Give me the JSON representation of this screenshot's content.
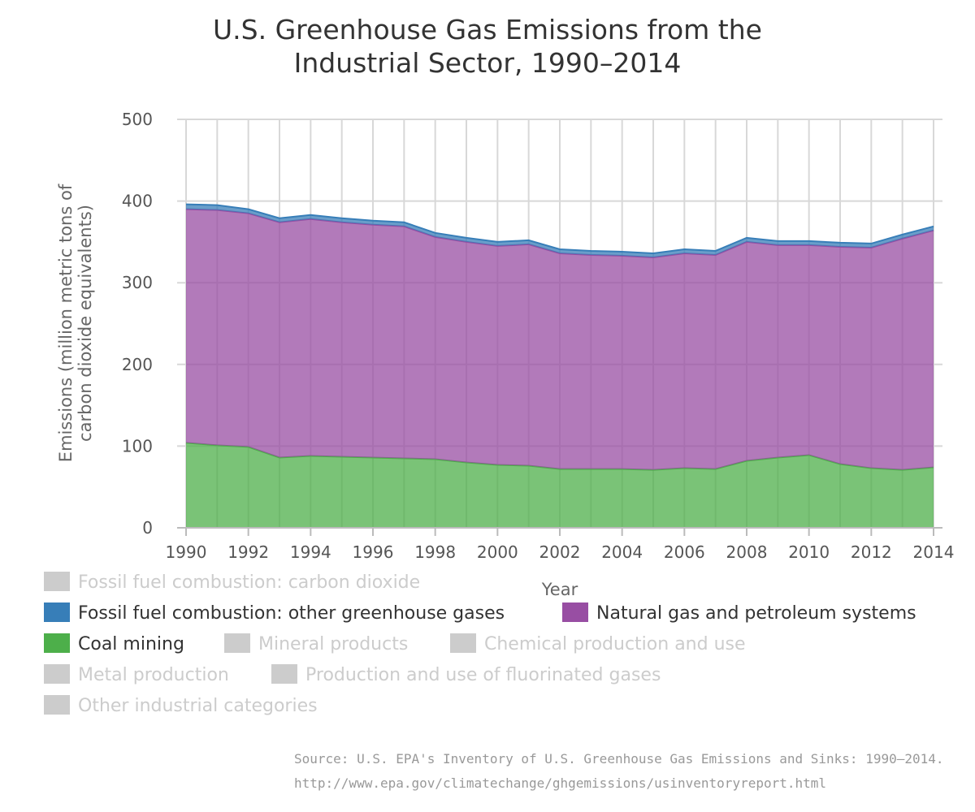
{
  "chart_data": {
    "type": "area",
    "stacked": true,
    "title": [
      "U.S. Greenhouse Gas Emissions from the",
      "Industrial Sector, 1990–2014"
    ],
    "xlabel": "Year",
    "ylabel": [
      "Emissions (million metric tons of",
      "carbon dioxide equivalents)"
    ],
    "ylim": [
      0,
      500
    ],
    "y_ticks": [
      0,
      100,
      200,
      300,
      400,
      500
    ],
    "x_ticks": [
      1990,
      1992,
      1994,
      1996,
      1998,
      2000,
      2002,
      2004,
      2006,
      2008,
      2010,
      2012,
      2014
    ],
    "grid": true,
    "legend_placement": "bottom",
    "x": [
      1990,
      1991,
      1992,
      1993,
      1994,
      1995,
      1996,
      1997,
      1998,
      1999,
      2000,
      2001,
      2002,
      2003,
      2004,
      2005,
      2006,
      2007,
      2008,
      2009,
      2010,
      2011,
      2012,
      2013,
      2014
    ],
    "series": [
      {
        "name": "Coal mining",
        "color": "#4daf4a",
        "visible": true,
        "values": [
          104,
          101,
          99,
          86,
          88,
          87,
          86,
          85,
          84,
          80,
          77,
          76,
          72,
          72,
          72,
          71,
          73,
          72,
          82,
          86,
          89,
          78,
          73,
          71,
          74
        ]
      },
      {
        "name": "Natural gas and petroleum systems",
        "color": "#984ea3",
        "visible": true,
        "values": [
          286,
          288,
          286,
          288,
          290,
          287,
          285,
          284,
          272,
          270,
          268,
          271,
          264,
          262,
          261,
          260,
          263,
          262,
          268,
          260,
          257,
          266,
          270,
          283,
          290
        ]
      },
      {
        "name": "Fossil fuel combustion: other greenhouse gases",
        "color": "#377eb8",
        "visible": true,
        "values": [
          6,
          6,
          5,
          5,
          5,
          5,
          5,
          5,
          5,
          5,
          5,
          5,
          5,
          5,
          5,
          5,
          5,
          5,
          5,
          5,
          5,
          5,
          5,
          5,
          5
        ]
      }
    ],
    "legend": [
      {
        "name": "Fossil fuel combustion: carbon dioxide",
        "color": "#cccccc",
        "visible": false
      },
      {
        "name": "Fossil fuel combustion: other greenhouse gases",
        "color": "#377eb8",
        "visible": true
      },
      {
        "name": "Natural gas and petroleum systems",
        "color": "#984ea3",
        "visible": true
      },
      {
        "name": "Coal mining",
        "color": "#4daf4a",
        "visible": true
      },
      {
        "name": "Mineral products",
        "color": "#cccccc",
        "visible": false
      },
      {
        "name": "Chemical production and use",
        "color": "#cccccc",
        "visible": false
      },
      {
        "name": "Metal production",
        "color": "#cccccc",
        "visible": false
      },
      {
        "name": "Production and use of fluorinated gases",
        "color": "#cccccc",
        "visible": false
      },
      {
        "name": "Other industrial categories",
        "color": "#cccccc",
        "visible": false
      }
    ]
  },
  "source": {
    "line1": "Source: U.S. EPA's Inventory of U.S. Greenhouse Gas Emissions and Sinks: 1990–2014.",
    "line2": "http://www.epa.gov/climatechange/ghgemissions/usinventoryreport.html"
  },
  "colors": {
    "visible_text": "#333333",
    "hidden_text": "#cccccc",
    "grid": "#d8d8d8"
  }
}
